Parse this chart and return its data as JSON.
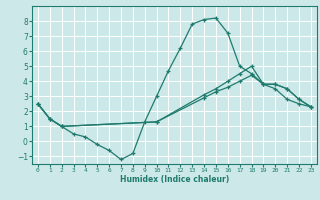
{
  "title": "",
  "xlabel": "Humidex (Indice chaleur)",
  "xlim": [
    -0.5,
    23.5
  ],
  "ylim": [
    -1.5,
    9.0
  ],
  "yticks": [
    -1,
    0,
    1,
    2,
    3,
    4,
    5,
    6,
    7,
    8
  ],
  "xticks": [
    0,
    1,
    2,
    3,
    4,
    5,
    6,
    7,
    8,
    9,
    10,
    11,
    12,
    13,
    14,
    15,
    16,
    17,
    18,
    19,
    20,
    21,
    22,
    23
  ],
  "bg_color": "#cde8e8",
  "grid_color": "#ffffff",
  "line_color": "#1e7b6e",
  "line_width": 0.9,
  "marker": "+",
  "markersize": 3.5,
  "lines": [
    {
      "x": [
        0,
        1,
        2,
        3,
        4,
        5,
        6,
        7,
        8,
        9,
        10,
        11,
        12,
        13,
        14,
        15,
        16,
        17,
        18,
        19,
        20,
        21,
        22,
        23
      ],
      "y": [
        2.5,
        1.5,
        1.0,
        0.5,
        0.3,
        -0.2,
        -0.6,
        -1.2,
        -0.8,
        1.3,
        3.0,
        4.7,
        6.2,
        7.8,
        8.1,
        8.2,
        7.2,
        5.0,
        4.5,
        3.8,
        3.5,
        2.8,
        2.5,
        2.3
      ]
    },
    {
      "x": [
        0,
        1,
        2,
        10,
        14,
        15,
        16,
        17,
        18,
        19,
        20,
        21,
        22,
        23
      ],
      "y": [
        2.5,
        1.5,
        1.0,
        1.3,
        2.9,
        3.3,
        3.6,
        4.0,
        4.4,
        3.8,
        3.8,
        3.5,
        2.8,
        2.3
      ]
    },
    {
      "x": [
        0,
        1,
        2,
        10,
        14,
        15,
        16,
        17,
        18,
        19,
        20,
        21,
        22,
        23
      ],
      "y": [
        2.5,
        1.5,
        1.0,
        1.3,
        3.1,
        3.5,
        4.0,
        4.5,
        5.0,
        3.8,
        3.8,
        3.5,
        2.8,
        2.3
      ]
    }
  ]
}
